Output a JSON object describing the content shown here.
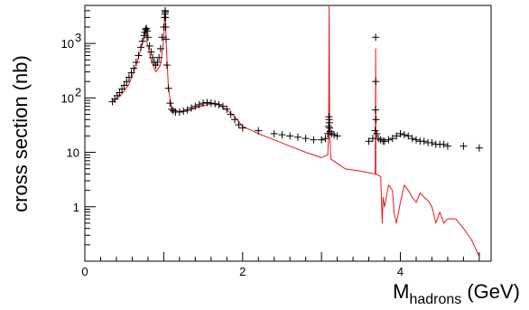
{
  "chart_data": {
    "type": "line",
    "title": "",
    "xlabel": "M",
    "xlabel_sub": "hadrons",
    "xlabel_unit": "(GeV)",
    "ylabel": "cross section (nb)",
    "xlim": [
      0,
      5.15
    ],
    "ylim": [
      0.1,
      5000
    ],
    "y_scale": "log",
    "grid": false,
    "legend": "none",
    "x_ticks": [
      {
        "value": 0,
        "label": "0"
      },
      {
        "value": 2,
        "label": "2"
      },
      {
        "value": 4,
        "label": "4"
      }
    ],
    "y_ticks": [
      {
        "value": 1,
        "label": "1"
      },
      {
        "value": 10,
        "label": "10"
      },
      {
        "value": 100,
        "label": "10",
        "exp": "2"
      },
      {
        "value": 1000,
        "label": "10",
        "exp": "3"
      }
    ],
    "colors": {
      "line_series": "#e8191c",
      "marker_series": "#000000"
    },
    "series": [
      {
        "style": "line",
        "color": "#e8191c",
        "x": [
          0.35,
          0.45,
          0.55,
          0.62,
          0.68,
          0.72,
          0.75,
          0.77,
          0.78,
          0.79,
          0.8,
          0.84,
          0.9,
          0.96,
          1.0,
          1.015,
          1.019,
          1.023,
          1.035,
          1.06,
          1.1,
          1.2,
          1.3,
          1.4,
          1.5,
          1.6,
          1.7,
          1.8,
          1.9,
          2.0,
          2.2,
          2.4,
          2.6,
          2.8,
          3.0,
          3.08,
          3.09,
          3.0969,
          3.104,
          3.12,
          3.3,
          3.5,
          3.68,
          3.686,
          3.69,
          3.75,
          3.77,
          3.78,
          3.8,
          3.85,
          3.9,
          3.92,
          3.95,
          4.0,
          4.05,
          4.1,
          4.15,
          4.2,
          4.25,
          4.3,
          4.35,
          4.4,
          4.45,
          4.5,
          4.55,
          4.6,
          4.7,
          4.8,
          4.9,
          5.0
        ],
        "y": [
          85,
          110,
          170,
          300,
          550,
          900,
          1300,
          1600,
          1500,
          1000,
          900,
          500,
          300,
          400,
          1200,
          3500,
          4000,
          2500,
          800,
          150,
          65,
          55,
          58,
          65,
          72,
          78,
          75,
          60,
          45,
          30,
          22,
          17,
          13,
          10,
          8,
          9,
          20,
          5000,
          20,
          7.5,
          5,
          4.5,
          4,
          800,
          4,
          3.6,
          0.5,
          1.5,
          1,
          2.5,
          2,
          0.8,
          0.5,
          1.2,
          2.5,
          2,
          1.5,
          1.2,
          1.8,
          1.5,
          1.3,
          1,
          0.5,
          0.8,
          0.5,
          0.6,
          0.6,
          0.4,
          0.25,
          0.12
        ]
      },
      {
        "style": "markers",
        "marker": "cross",
        "color": "#000000",
        "x": [
          0.35,
          0.38,
          0.41,
          0.44,
          0.47,
          0.5,
          0.53,
          0.56,
          0.59,
          0.62,
          0.65,
          0.68,
          0.71,
          0.73,
          0.75,
          0.76,
          0.77,
          0.78,
          0.79,
          0.8,
          0.82,
          0.84,
          0.86,
          0.88,
          0.9,
          0.92,
          0.94,
          0.96,
          0.98,
          1.0,
          1.01,
          1.015,
          1.018,
          1.02,
          1.022,
          1.025,
          1.03,
          1.04,
          1.06,
          1.08,
          1.1,
          1.12,
          1.15,
          1.2,
          1.25,
          1.3,
          1.35,
          1.4,
          1.45,
          1.5,
          1.55,
          1.6,
          1.65,
          1.7,
          1.75,
          1.8,
          1.85,
          1.9,
          1.95,
          2.0,
          2.2,
          2.4,
          2.5,
          2.6,
          2.7,
          2.8,
          2.9,
          3.0,
          3.05,
          3.08,
          3.09,
          3.095,
          3.0969,
          3.1,
          3.103,
          3.11,
          3.13,
          3.16,
          3.2,
          3.6,
          3.65,
          3.68,
          3.684,
          3.686,
          3.688,
          3.692,
          3.7,
          3.72,
          3.75,
          3.78,
          3.8,
          3.85,
          3.9,
          3.95,
          4.0,
          4.05,
          4.1,
          4.15,
          4.2,
          4.25,
          4.3,
          4.35,
          4.4,
          4.45,
          4.5,
          4.55,
          4.6,
          4.8,
          5.0
        ],
        "y": [
          85,
          95,
          110,
          125,
          145,
          170,
          200,
          240,
          290,
          350,
          450,
          600,
          850,
          1100,
          1400,
          1600,
          1800,
          1900,
          1700,
          1300,
          900,
          700,
          550,
          450,
          400,
          450,
          550,
          800,
          1300,
          2000,
          3000,
          3500,
          4000,
          3800,
          3000,
          2000,
          1200,
          400,
          150,
          80,
          62,
          58,
          55,
          55,
          57,
          60,
          65,
          70,
          75,
          80,
          82,
          80,
          78,
          75,
          70,
          62,
          50,
          40,
          32,
          28,
          25,
          22,
          21,
          20,
          19,
          18,
          17,
          17,
          18,
          22,
          30,
          45,
          40,
          35,
          28,
          24,
          22,
          21,
          20,
          16,
          18,
          25,
          60,
          1300,
          200,
          40,
          22,
          18,
          17,
          16,
          16,
          17,
          18,
          20,
          22,
          21,
          20,
          18,
          17,
          16,
          16,
          15,
          15,
          14,
          14,
          14,
          13,
          13,
          12
        ]
      }
    ]
  }
}
